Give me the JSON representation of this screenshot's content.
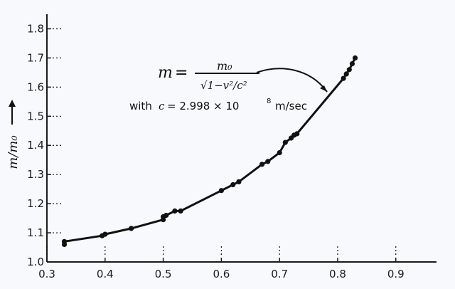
{
  "chart_data": {
    "type": "scatter",
    "xlabel": "",
    "ylabel": "m/m₀",
    "xlim": [
      0.3,
      0.97
    ],
    "ylim": [
      1.0,
      1.85
    ],
    "x_ticks": [
      0.3,
      0.4,
      0.5,
      0.6,
      0.7,
      0.8,
      0.9
    ],
    "y_ticks": [
      1.0,
      1.1,
      1.2,
      1.3,
      1.4,
      1.5,
      1.6,
      1.7,
      1.8
    ],
    "x_tick_labels": [
      "0.3",
      "0.4",
      "0.5",
      "0.6",
      "0.7",
      "0.8",
      "0.9"
    ],
    "y_tick_labels": [
      "1.0",
      "1.1",
      "1.2",
      "1.3",
      "1.4",
      "1.5",
      "1.6",
      "1.7",
      "1.8"
    ],
    "annotation": {
      "formula_lhs": "m",
      "formula_eq": "=",
      "formula_num": "m₀",
      "formula_den": "√1−v²/c²",
      "with_prefix": "with",
      "with_c": "c",
      "with_value": "= 2.998 × 10",
      "with_exp": "8",
      "with_unit": "m/sec"
    },
    "series": [
      {
        "points": [
          {
            "x": 0.33,
            "y": 1.06
          },
          {
            "x": 0.33,
            "y": 1.07
          },
          {
            "x": 0.395,
            "y": 1.09
          },
          {
            "x": 0.4,
            "y": 1.095
          },
          {
            "x": 0.445,
            "y": 1.115
          },
          {
            "x": 0.5,
            "y": 1.145
          },
          {
            "x": 0.5,
            "y": 1.155
          },
          {
            "x": 0.505,
            "y": 1.16
          },
          {
            "x": 0.52,
            "y": 1.175
          },
          {
            "x": 0.53,
            "y": 1.175
          },
          {
            "x": 0.6,
            "y": 1.245
          },
          {
            "x": 0.62,
            "y": 1.265
          },
          {
            "x": 0.63,
            "y": 1.275
          },
          {
            "x": 0.67,
            "y": 1.335
          },
          {
            "x": 0.68,
            "y": 1.345
          },
          {
            "x": 0.7,
            "y": 1.375
          },
          {
            "x": 0.71,
            "y": 1.41
          },
          {
            "x": 0.72,
            "y": 1.425
          },
          {
            "x": 0.725,
            "y": 1.435
          },
          {
            "x": 0.73,
            "y": 1.44
          },
          {
            "x": 0.81,
            "y": 1.63
          },
          {
            "x": 0.815,
            "y": 1.645
          },
          {
            "x": 0.82,
            "y": 1.66
          },
          {
            "x": 0.825,
            "y": 1.68
          },
          {
            "x": 0.83,
            "y": 1.7
          }
        ]
      }
    ]
  }
}
